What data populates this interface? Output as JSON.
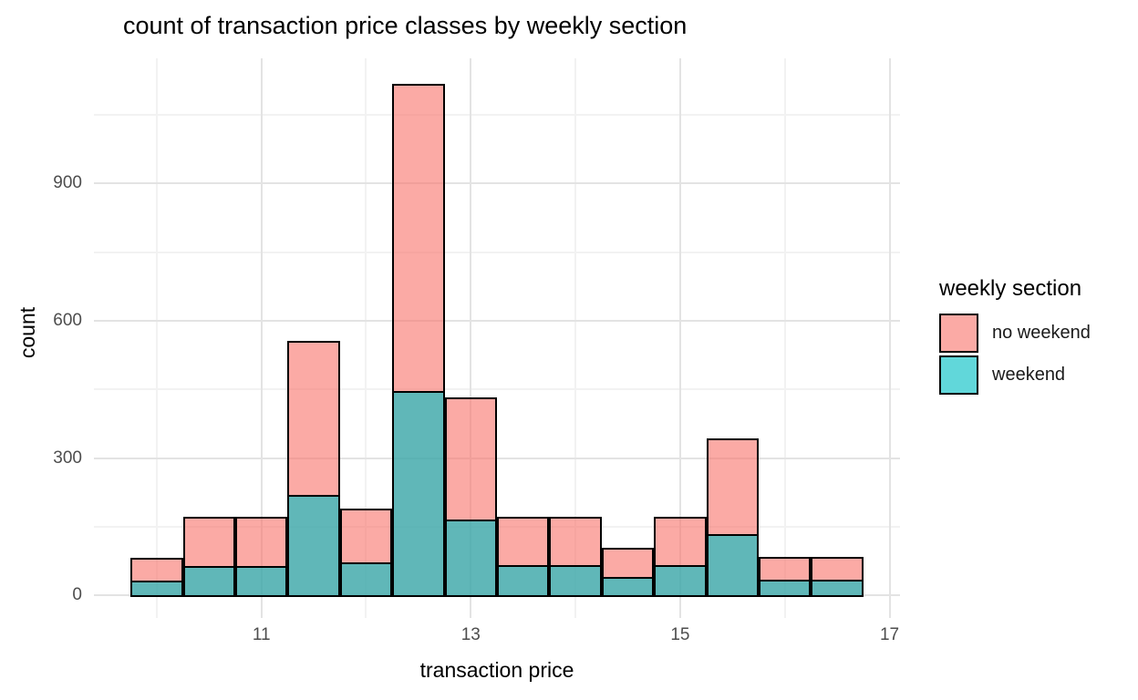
{
  "title": "count of transaction price classes by weekly section",
  "colors": {
    "no_weekend_fill": "rgba(248,118,109,0.62)",
    "weekend_fill": "rgba(0,191,196,0.62)",
    "bar_stroke": "#000000",
    "grid_major": "#e3e3e3",
    "grid_minor": "#f2f2f2",
    "tick_label": "#4d4d4d",
    "background": "#ffffff"
  },
  "legend": {
    "title": "weekly section",
    "items": [
      {
        "label": "no weekend",
        "color_key": "no_weekend_fill"
      },
      {
        "label": "weekend",
        "color_key": "weekend_fill"
      }
    ]
  },
  "chart_data": {
    "type": "bar",
    "subtype": "overlaid-histogram",
    "title": "count of transaction price classes by weekly section",
    "xlabel": "transaction price",
    "ylabel": "count",
    "legend_title": "weekly section",
    "legend_position": "right",
    "grid": "on",
    "bin_width": 0.5,
    "bin_centers": [
      10,
      10.5,
      11,
      11.5,
      12,
      12.5,
      13,
      13.5,
      14,
      14.5,
      15,
      15.5,
      16,
      16.5
    ],
    "series": [
      {
        "name": "no weekend",
        "values": [
          82,
          172,
          172,
          557,
          190,
          1117,
          432,
          172,
          172,
          104,
          172,
          343,
          84,
          84
        ]
      },
      {
        "name": "weekend",
        "values": [
          33,
          64,
          64,
          220,
          72,
          446,
          167,
          66,
          66,
          40,
          66,
          135,
          34,
          34
        ]
      }
    ],
    "x_ticks": [
      11,
      13,
      15,
      17
    ],
    "x_tick_labels": [
      "11",
      "13",
      "15",
      "17"
    ],
    "x_minor_ticks": [
      10,
      12,
      14,
      16
    ],
    "y_ticks": [
      0,
      300,
      600,
      900
    ],
    "y_tick_labels": [
      "0",
      "300",
      "600",
      "900"
    ],
    "y_minor_ticks": [
      150,
      450,
      750,
      1050
    ],
    "xlim": [
      9.4,
      17.1
    ],
    "ylim": [
      -49,
      1173
    ]
  }
}
